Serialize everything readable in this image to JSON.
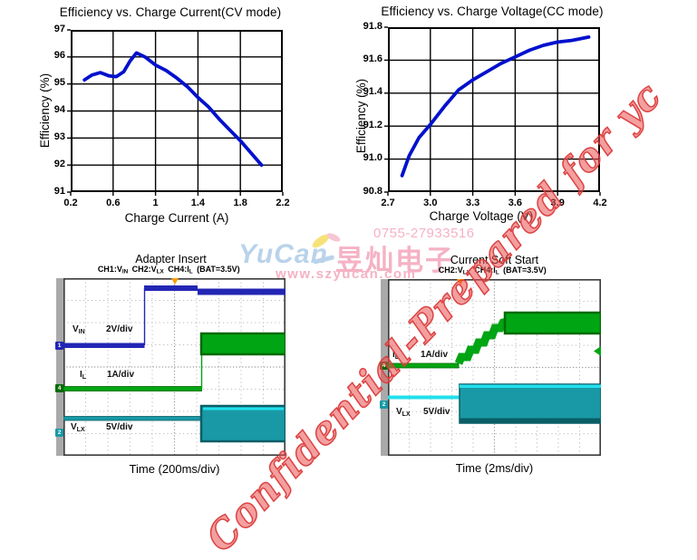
{
  "chart_data": [
    {
      "type": "line",
      "title": "Efficiency vs. Charge Current(CV mode)",
      "xlabel": "Charge Current (A)",
      "ylabel": "Efficiency (%)",
      "xlim": [
        0.2,
        2.2
      ],
      "ylim": [
        91,
        97
      ],
      "xticks": [
        "0.2",
        "0.6",
        "1",
        "1.4",
        "1.8",
        "2.2"
      ],
      "yticks": [
        "97",
        "96",
        "95",
        "94",
        "93",
        "92",
        "91"
      ],
      "grid": true,
      "legend": false,
      "line_color": "#0011cc",
      "series": [
        {
          "name": "Efficiency",
          "x": [
            0.33,
            0.4,
            0.48,
            0.56,
            0.63,
            0.7,
            0.76,
            0.82,
            0.9,
            1.0,
            1.1,
            1.2,
            1.3,
            1.4,
            1.5,
            1.6,
            1.7,
            1.8,
            1.9,
            2.0
          ],
          "y": [
            95.15,
            95.33,
            95.42,
            95.3,
            95.27,
            95.45,
            95.85,
            96.15,
            96.0,
            95.7,
            95.5,
            95.22,
            94.9,
            94.5,
            94.15,
            93.7,
            93.3,
            92.9,
            92.45,
            92.0
          ]
        }
      ]
    },
    {
      "type": "line",
      "title": "Efficiency vs. Charge Voltage(CC mode)",
      "xlabel": "Charge Voltage (V)",
      "ylabel": "Efficiency (%)",
      "xlim": [
        2.7,
        4.2
      ],
      "ylim": [
        90.8,
        91.8
      ],
      "xticks": [
        "2.7",
        "3.0",
        "3.3",
        "3.6",
        "3.9",
        "4.2"
      ],
      "yticks": [
        "91.8",
        "91.6",
        "91.4",
        "91.2",
        "91.0",
        "90.8"
      ],
      "grid": true,
      "legend": false,
      "line_color": "#0011cc",
      "series": [
        {
          "name": "Efficiency",
          "x": [
            2.8,
            2.85,
            2.92,
            3.0,
            3.1,
            3.2,
            3.3,
            3.4,
            3.5,
            3.6,
            3.7,
            3.8,
            3.9,
            4.0,
            4.12
          ],
          "y": [
            90.9,
            91.02,
            91.13,
            91.21,
            91.32,
            91.42,
            91.48,
            91.53,
            91.58,
            91.62,
            91.66,
            91.69,
            91.71,
            91.72,
            91.74
          ]
        }
      ]
    }
  ],
  "scopes": [
    {
      "title": "Adapter Insert",
      "subtitle_parts": [
        [
          "CH1:V",
          "IN"
        ],
        [
          "CH2:V",
          "LX"
        ],
        [
          "CH4:I",
          "L"
        ],
        [
          "(BAT=3.5V)",
          ""
        ]
      ],
      "time_label": "Time (200ms/div)",
      "channels": [
        {
          "main": "V",
          "sub": "IN",
          "scale": "2V/div",
          "marker": "1"
        },
        {
          "main": "I",
          "sub": "L",
          "scale": "1A/div",
          "marker": "4"
        },
        {
          "main": "V",
          "sub": "LX",
          "scale": "5V/div",
          "marker": "2"
        }
      ]
    },
    {
      "title": "Current Soft Start",
      "subtitle_parts": [
        [
          "CH2:V",
          "LX"
        ],
        [
          "CH4:I",
          "L"
        ],
        [
          "(BAT=3.5V)",
          ""
        ]
      ],
      "time_label": "Time (2ms/div)",
      "channels": [
        {
          "main": "I",
          "sub": "L",
          "scale": "1A/div",
          "marker": "4"
        },
        {
          "main": "V",
          "sub": "LX",
          "scale": "5V/div",
          "marker": "2"
        }
      ]
    }
  ],
  "watermarks": {
    "diagonal": {
      "text": "Confidential-Prepared for yc",
      "color": "rgba(233,80,80,0.55)"
    },
    "center": {
      "phone": "0755-27933516",
      "brand": "YuCan",
      "brand_cn": "昱灿电子",
      "site": "www.szyucan.com",
      "brand_blue": "#b9d3ea",
      "pink": "#f5b2c4"
    }
  },
  "colors": {
    "scope_blue": "#2326b4",
    "scope_green": "#00a513",
    "scope_green_dark": "#036a03",
    "scope_teal": "#1999a6",
    "scope_teal_dark": "#0b5e66",
    "scope_cyan": "#22e0ee",
    "trigger": "#ff9c00",
    "grid_dot": "#bbbbbb",
    "grid_center": "#999999",
    "scope_border": "#3a3a3a",
    "strip_gray": "#a9a9a9",
    "axis_black": "#000000"
  }
}
